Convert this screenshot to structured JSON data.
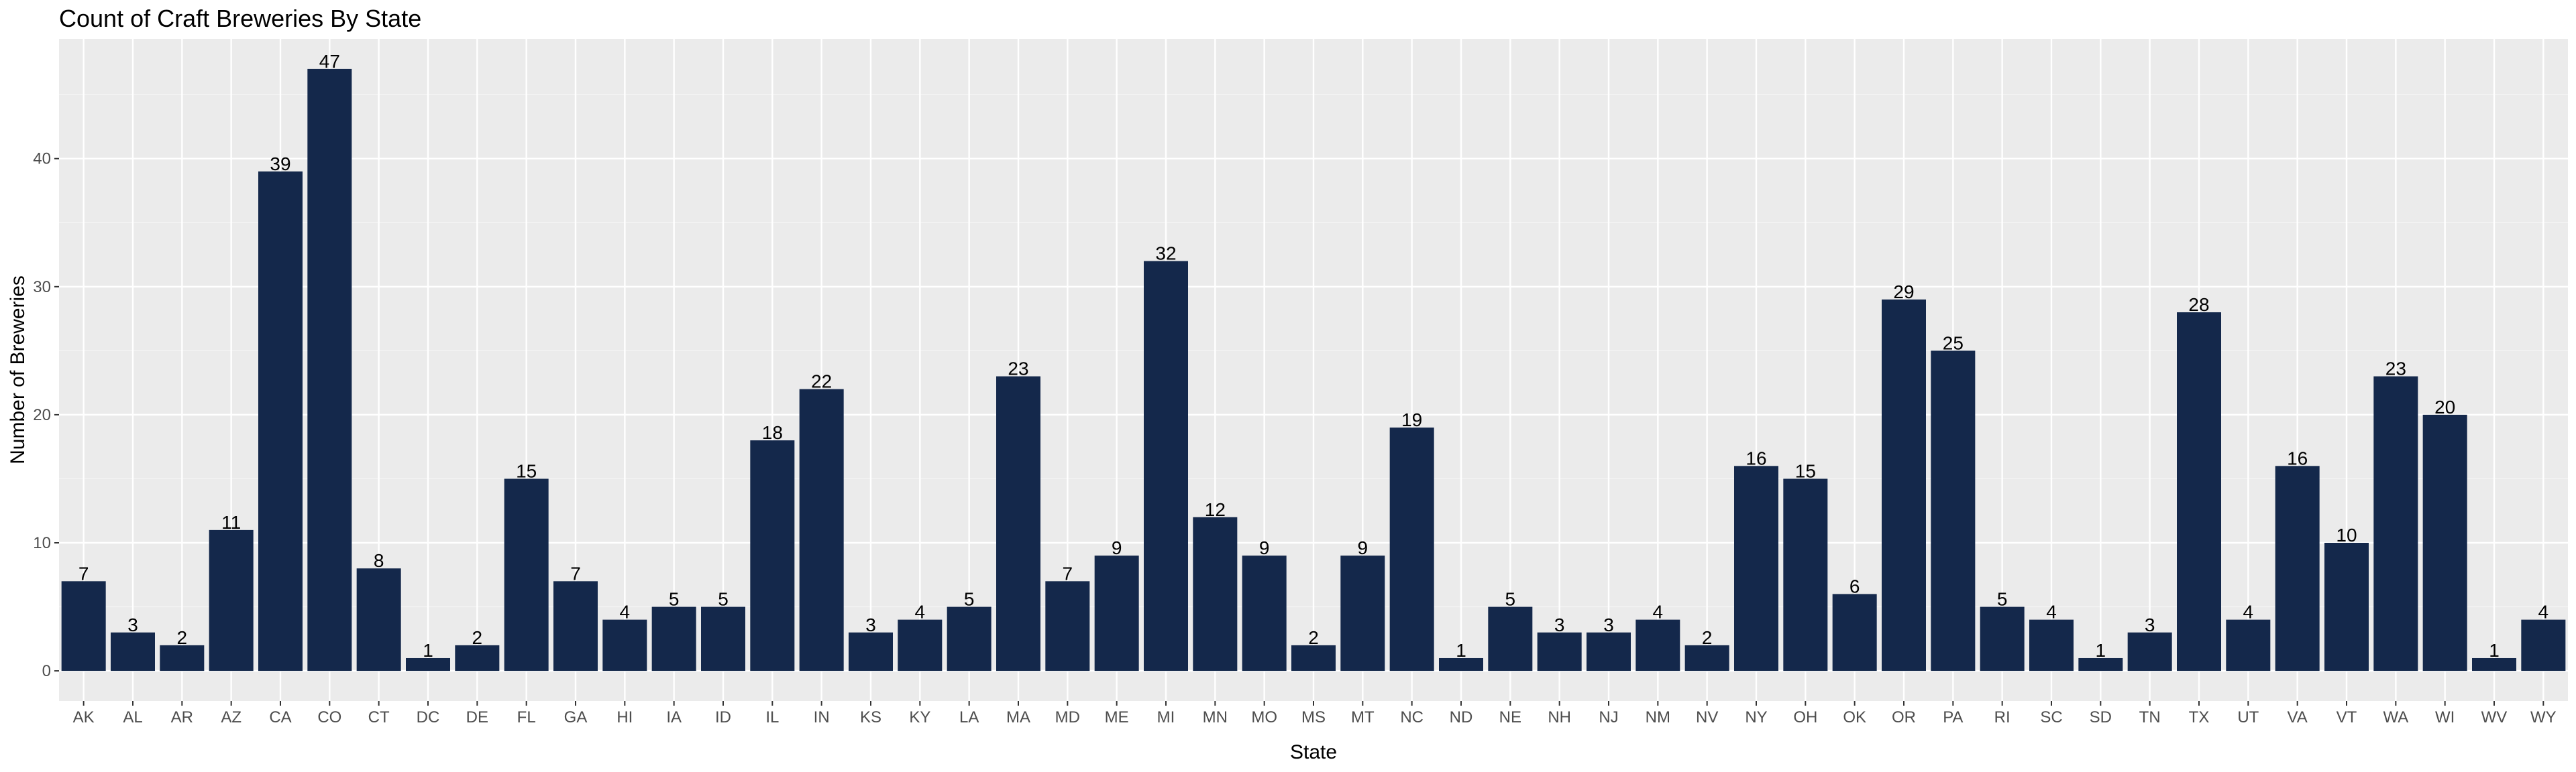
{
  "chart_data": {
    "type": "bar",
    "title": "Count of Craft Breweries By State",
    "xlabel": "State",
    "ylabel": "Number of Breweries",
    "ylim": [
      -2.35,
      49.35
    ],
    "yticks": [
      0,
      10,
      20,
      30,
      40
    ],
    "grid": true,
    "legend": "none",
    "bar_color": "#14284b",
    "panel_background": "#ebebeb",
    "grid_major_color": "#ffffff",
    "categories": [
      "AK",
      "AL",
      "AR",
      "AZ",
      "CA",
      "CO",
      "CT",
      "DC",
      "DE",
      "FL",
      "GA",
      "HI",
      "IA",
      "ID",
      "IL",
      "IN",
      "KS",
      "KY",
      "LA",
      "MA",
      "MD",
      "ME",
      "MI",
      "MN",
      "MO",
      "MS",
      "MT",
      "NC",
      "ND",
      "NE",
      "NH",
      "NJ",
      "NM",
      "NV",
      "NY",
      "OH",
      "OK",
      "OR",
      "PA",
      "RI",
      "SC",
      "SD",
      "TN",
      "TX",
      "UT",
      "VA",
      "VT",
      "WA",
      "WI",
      "WV",
      "WY"
    ],
    "values": [
      7,
      3,
      2,
      11,
      39,
      47,
      8,
      1,
      2,
      15,
      7,
      4,
      5,
      5,
      18,
      22,
      3,
      4,
      5,
      23,
      7,
      9,
      32,
      12,
      9,
      2,
      9,
      19,
      1,
      5,
      3,
      3,
      4,
      2,
      16,
      15,
      6,
      29,
      25,
      5,
      4,
      1,
      3,
      28,
      4,
      16,
      10,
      23,
      20,
      1,
      4
    ]
  }
}
